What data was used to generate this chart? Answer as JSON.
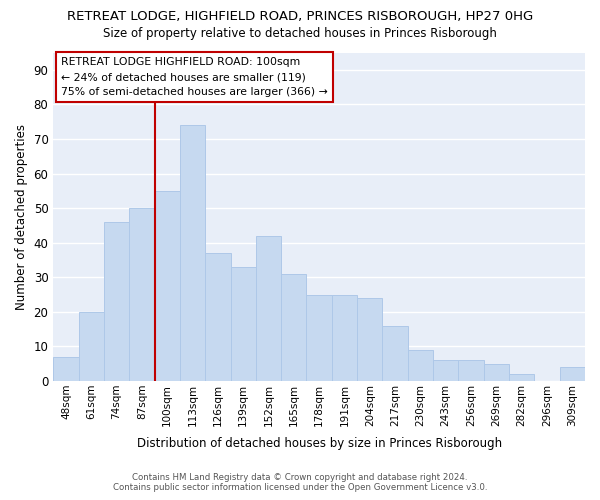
{
  "title": "RETREAT LODGE, HIGHFIELD ROAD, PRINCES RISBOROUGH, HP27 0HG",
  "subtitle": "Size of property relative to detached houses in Princes Risborough",
  "xlabel": "Distribution of detached houses by size in Princes Risborough",
  "ylabel": "Number of detached properties",
  "categories": [
    "48sqm",
    "61sqm",
    "74sqm",
    "87sqm",
    "100sqm",
    "113sqm",
    "126sqm",
    "139sqm",
    "152sqm",
    "165sqm",
    "178sqm",
    "191sqm",
    "204sqm",
    "217sqm",
    "230sqm",
    "243sqm",
    "256sqm",
    "269sqm",
    "282sqm",
    "296sqm",
    "309sqm"
  ],
  "values": [
    7,
    20,
    46,
    50,
    55,
    74,
    37,
    33,
    42,
    31,
    25,
    25,
    24,
    16,
    9,
    6,
    6,
    5,
    2,
    0,
    4
  ],
  "bar_color": "#c6d9f0",
  "bar_edge_color": "#aec8e8",
  "highlight_index": 4,
  "highlight_color": "#c00000",
  "ylim": [
    0,
    95
  ],
  "yticks": [
    0,
    10,
    20,
    30,
    40,
    50,
    60,
    70,
    80,
    90
  ],
  "annotation_text": "RETREAT LODGE HIGHFIELD ROAD: 100sqm\n← 24% of detached houses are smaller (119)\n75% of semi-detached houses are larger (366) →",
  "footer_line1": "Contains HM Land Registry data © Crown copyright and database right 2024.",
  "footer_line2": "Contains public sector information licensed under the Open Government Licence v3.0.",
  "background_color": "#ffffff",
  "plot_bg_color": "#e8eef8",
  "grid_color": "#ffffff"
}
